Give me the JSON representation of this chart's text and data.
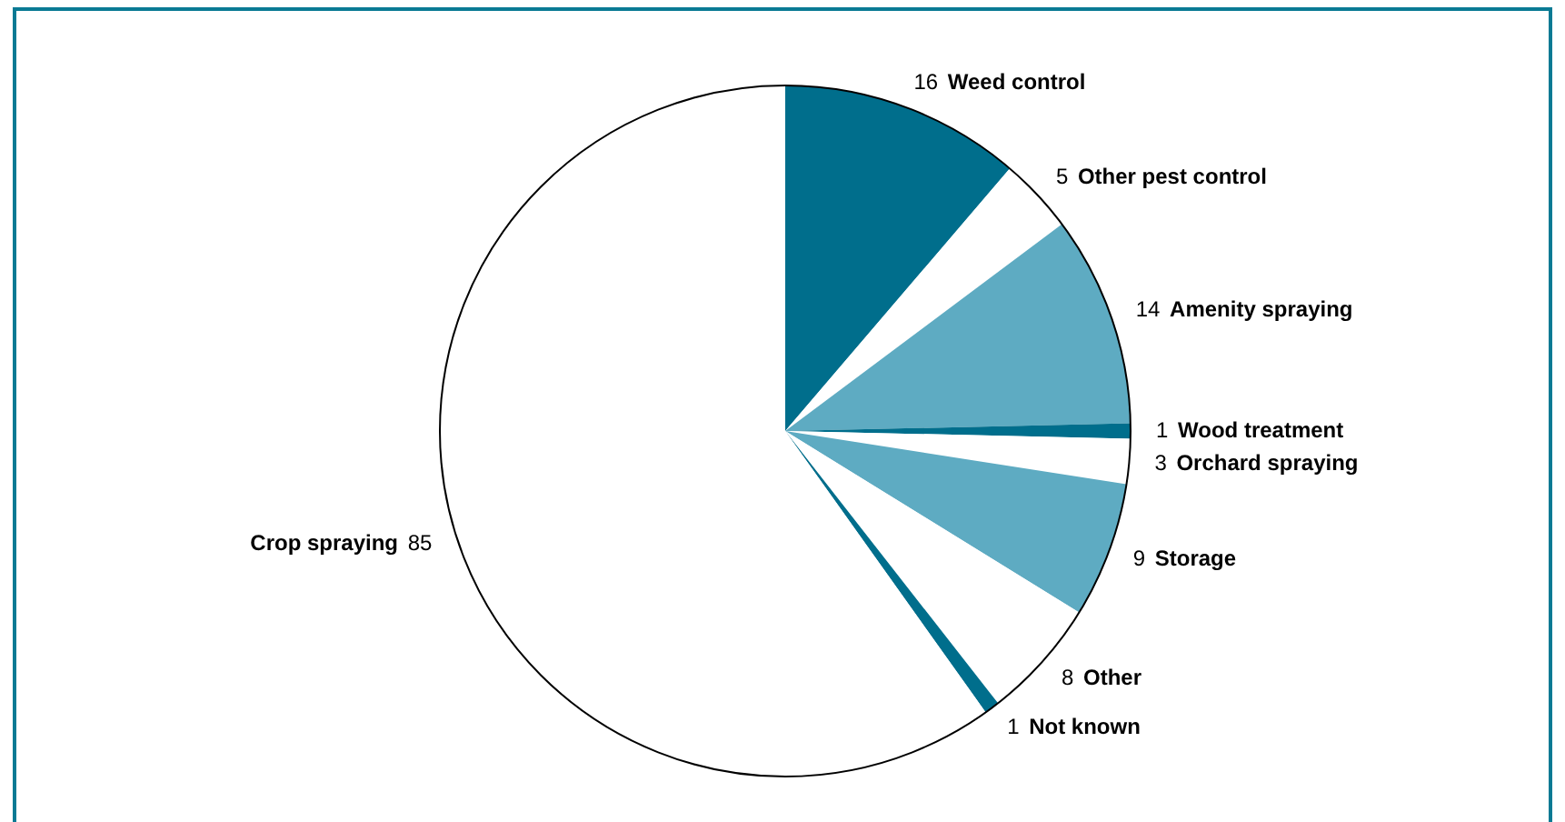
{
  "chart_data": {
    "type": "pie",
    "categories": [
      "Weed control",
      "Other pest control",
      "Amenity spraying",
      "Wood treatment",
      "Orchard spraying",
      "Storage",
      "Other",
      "Not known",
      "Crop spraying"
    ],
    "values": [
      16,
      5,
      14,
      1,
      3,
      9,
      8,
      1,
      85
    ],
    "colors": [
      "#006e8c",
      "#ffffff",
      "#5eabc2",
      "#006e8c",
      "#ffffff",
      "#5eabc2",
      "#ffffff",
      "#006e8c",
      "#ffffff"
    ],
    "data_labels": true,
    "legend": false
  }
}
